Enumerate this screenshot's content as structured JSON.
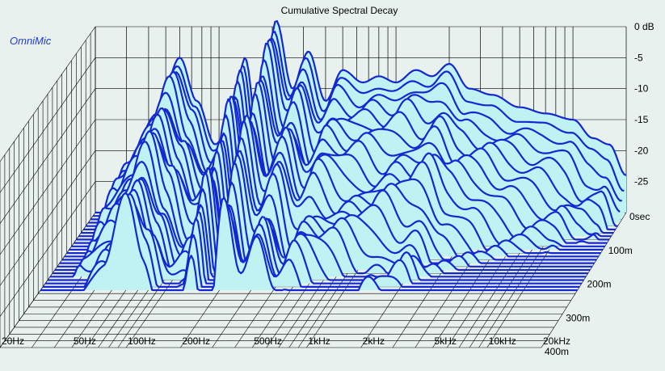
{
  "app": {
    "brand": "OmniMic"
  },
  "chart_data": {
    "type": "waterfall",
    "title": "Cumulative Spectral Decay",
    "x_scale": "log",
    "x_ticks": [
      {
        "label": "20Hz",
        "value": 20
      },
      {
        "label": "50Hz",
        "value": 50
      },
      {
        "label": "100Hz",
        "value": 100
      },
      {
        "label": "200Hz",
        "value": 200
      },
      {
        "label": "500Hz",
        "value": 500
      },
      {
        "label": "1kHz",
        "value": 1000
      },
      {
        "label": "2kHz",
        "value": 2000
      },
      {
        "label": "5kHz",
        "value": 5000
      },
      {
        "label": "10kHz",
        "value": 10000
      },
      {
        "label": "20kHz",
        "value": 20000
      }
    ],
    "y_ticks": [
      {
        "label": "0 dB",
        "value": 0
      },
      {
        "label": "-5",
        "value": -5
      },
      {
        "label": "-10",
        "value": -10
      },
      {
        "label": "-15",
        "value": -15
      },
      {
        "label": "-20",
        "value": -20
      },
      {
        "label": "-25",
        "value": -25
      }
    ],
    "t_ticks": [
      {
        "label": "0sec",
        "value": 0
      },
      {
        "label": "100m",
        "value": 100
      },
      {
        "label": "200m",
        "value": 200
      },
      {
        "label": "300m",
        "value": 300
      },
      {
        "label": "400m",
        "value": 400
      }
    ],
    "ylim": [
      -30,
      0
    ],
    "tlim": [
      0,
      400
    ],
    "slice_interval_ms": 10,
    "slice_count": 24,
    "colors": {
      "fill": "#bff3f3",
      "line": "#1428d2",
      "grid": "#000000",
      "background": "#e9f1ee",
      "start_marker": "#2aa52a"
    },
    "anchors": [
      {
        "f": 20,
        "db": -40
      },
      {
        "f": 30,
        "db": -22
      },
      {
        "f": 45,
        "db": -14
      },
      {
        "f": 60,
        "db": -5
      },
      {
        "f": 75,
        "db": -12
      },
      {
        "f": 95,
        "db": -19
      },
      {
        "f": 120,
        "db": -15
      },
      {
        "f": 140,
        "db": -5
      },
      {
        "f": 170,
        "db": -20
      },
      {
        "f": 210,
        "db": 1
      },
      {
        "f": 260,
        "db": -10
      },
      {
        "f": 320,
        "db": -4
      },
      {
        "f": 400,
        "db": -12
      },
      {
        "f": 500,
        "db": -7
      },
      {
        "f": 650,
        "db": -9
      },
      {
        "f": 800,
        "db": -8
      },
      {
        "f": 1000,
        "db": -9
      },
      {
        "f": 1300,
        "db": -7
      },
      {
        "f": 1600,
        "db": -8
      },
      {
        "f": 2000,
        "db": -6
      },
      {
        "f": 2600,
        "db": -10
      },
      {
        "f": 3500,
        "db": -11
      },
      {
        "f": 5000,
        "db": -13
      },
      {
        "f": 7000,
        "db": -14
      },
      {
        "f": 10000,
        "db": -15
      },
      {
        "f": 13000,
        "db": -18
      },
      {
        "f": 16000,
        "db": -19
      },
      {
        "f": 20000,
        "db": -24
      }
    ]
  }
}
